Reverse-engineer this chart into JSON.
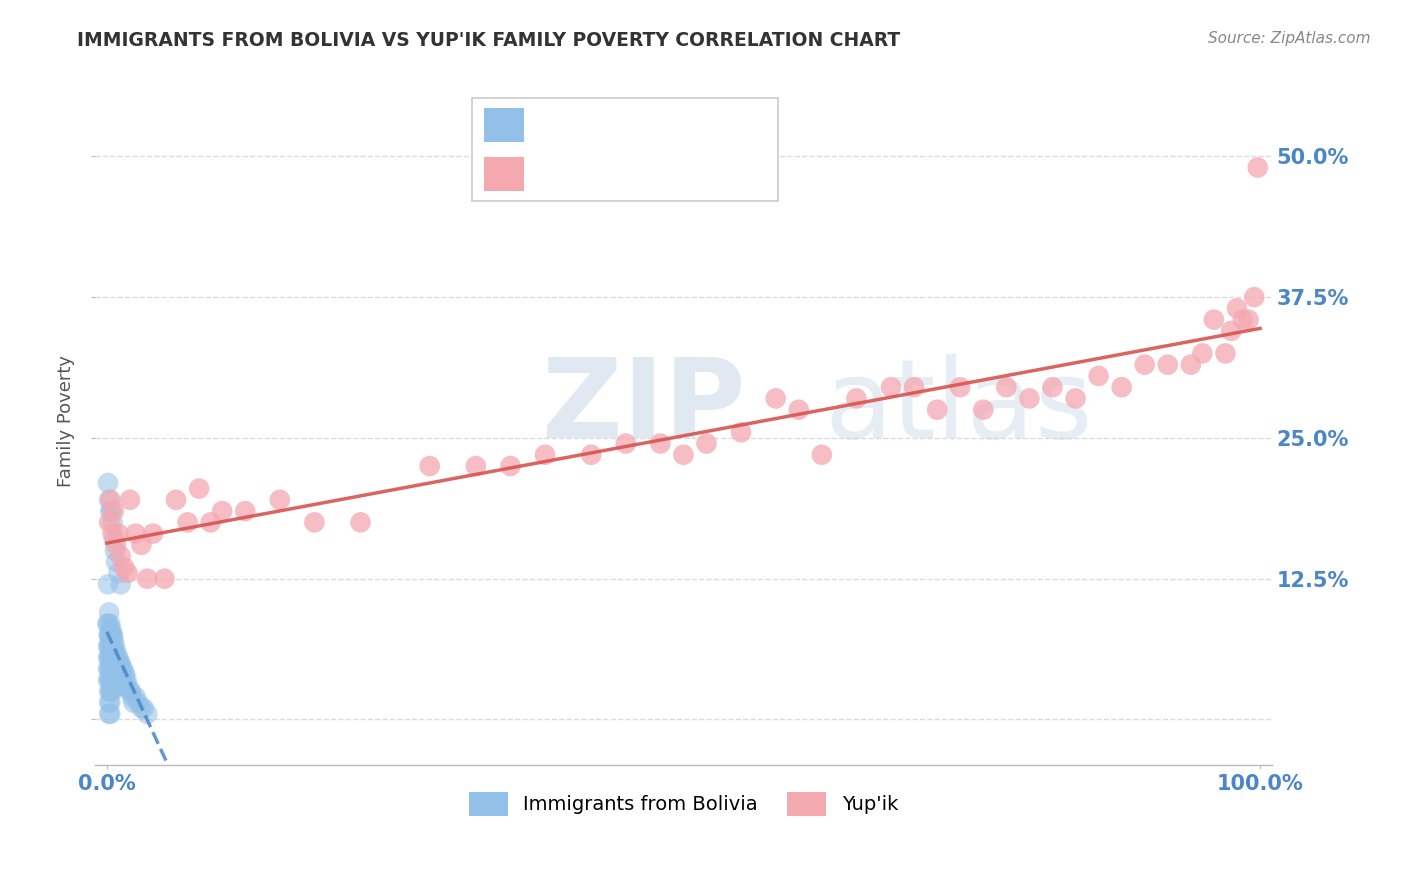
{
  "title": "IMMIGRANTS FROM BOLIVIA VS YUP'IK FAMILY POVERTY CORRELATION CHART",
  "source": "Source: ZipAtlas.com",
  "ylabel": "Family Poverty",
  "yticks": [
    0.0,
    0.125,
    0.25,
    0.375,
    0.5
  ],
  "ytick_labels_right": [
    "",
    "12.5%",
    "25.0%",
    "37.5%",
    "50.0%"
  ],
  "xlim": [
    -0.01,
    1.01
  ],
  "ylim": [
    -0.04,
    0.57
  ],
  "watermark_zip": "ZIP",
  "watermark_atlas": "atlas",
  "legend_label1": "Immigrants from Bolivia",
  "legend_label2": "Yup'ik",
  "blue_color": "#92c0e8",
  "pink_color": "#f4a8b0",
  "blue_line_color": "#4a86c8",
  "pink_line_color": "#d9534f",
  "title_color": "#333333",
  "source_color": "#888888",
  "axis_label_color": "#555555",
  "tick_label_color": "#4a86c8",
  "grid_color": "#cccccc",
  "background_color": "#ffffff",
  "bolivia_x": [
    0.0005,
    0.001,
    0.001,
    0.001,
    0.001,
    0.0015,
    0.002,
    0.002,
    0.002,
    0.002,
    0.002,
    0.002,
    0.002,
    0.003,
    0.003,
    0.003,
    0.003,
    0.003,
    0.003,
    0.003,
    0.003,
    0.004,
    0.004,
    0.004,
    0.004,
    0.004,
    0.004,
    0.005,
    0.005,
    0.005,
    0.005,
    0.005,
    0.005,
    0.006,
    0.006,
    0.006,
    0.006,
    0.007,
    0.007,
    0.007,
    0.007,
    0.008,
    0.008,
    0.008,
    0.009,
    0.009,
    0.01,
    0.01,
    0.01,
    0.011,
    0.011,
    0.012,
    0.012,
    0.013,
    0.013,
    0.014,
    0.015,
    0.015,
    0.016,
    0.017,
    0.018,
    0.02,
    0.021,
    0.022,
    0.023,
    0.025,
    0.027,
    0.03,
    0.032,
    0.035,
    0.001,
    0.001,
    0.002,
    0.002,
    0.003,
    0.003,
    0.004,
    0.004,
    0.005,
    0.005,
    0.001,
    0.002,
    0.003,
    0.004,
    0.005,
    0.006,
    0.007,
    0.008,
    0.01,
    0.012
  ],
  "bolivia_y": [
    0.085,
    0.065,
    0.055,
    0.045,
    0.035,
    0.075,
    0.065,
    0.055,
    0.045,
    0.035,
    0.025,
    0.015,
    0.005,
    0.075,
    0.065,
    0.055,
    0.045,
    0.035,
    0.025,
    0.015,
    0.005,
    0.075,
    0.065,
    0.055,
    0.045,
    0.035,
    0.025,
    0.075,
    0.065,
    0.055,
    0.045,
    0.035,
    0.025,
    0.07,
    0.06,
    0.05,
    0.04,
    0.065,
    0.055,
    0.045,
    0.035,
    0.06,
    0.05,
    0.04,
    0.055,
    0.045,
    0.055,
    0.045,
    0.035,
    0.05,
    0.04,
    0.05,
    0.04,
    0.045,
    0.035,
    0.045,
    0.04,
    0.03,
    0.04,
    0.035,
    0.03,
    0.025,
    0.025,
    0.02,
    0.015,
    0.02,
    0.015,
    0.01,
    0.01,
    0.005,
    0.12,
    0.085,
    0.095,
    0.075,
    0.085,
    0.07,
    0.08,
    0.065,
    0.075,
    0.06,
    0.21,
    0.195,
    0.185,
    0.185,
    0.175,
    0.16,
    0.15,
    0.14,
    0.13,
    0.12
  ],
  "yupik_x": [
    0.002,
    0.003,
    0.005,
    0.006,
    0.008,
    0.01,
    0.012,
    0.015,
    0.018,
    0.02,
    0.025,
    0.03,
    0.035,
    0.04,
    0.05,
    0.06,
    0.07,
    0.08,
    0.09,
    0.1,
    0.12,
    0.15,
    0.18,
    0.22,
    0.28,
    0.32,
    0.35,
    0.38,
    0.42,
    0.45,
    0.48,
    0.5,
    0.52,
    0.55,
    0.58,
    0.6,
    0.62,
    0.65,
    0.68,
    0.7,
    0.72,
    0.74,
    0.76,
    0.78,
    0.8,
    0.82,
    0.84,
    0.86,
    0.88,
    0.9,
    0.92,
    0.94,
    0.95,
    0.96,
    0.97,
    0.975,
    0.98,
    0.985,
    0.99,
    0.995,
    0.998
  ],
  "yupik_y": [
    0.175,
    0.195,
    0.165,
    0.185,
    0.155,
    0.165,
    0.145,
    0.135,
    0.13,
    0.195,
    0.165,
    0.155,
    0.125,
    0.165,
    0.125,
    0.195,
    0.175,
    0.205,
    0.175,
    0.185,
    0.185,
    0.195,
    0.175,
    0.175,
    0.225,
    0.225,
    0.225,
    0.235,
    0.235,
    0.245,
    0.245,
    0.235,
    0.245,
    0.255,
    0.285,
    0.275,
    0.235,
    0.285,
    0.295,
    0.295,
    0.275,
    0.295,
    0.275,
    0.295,
    0.285,
    0.295,
    0.285,
    0.305,
    0.295,
    0.315,
    0.315,
    0.315,
    0.325,
    0.355,
    0.325,
    0.345,
    0.365,
    0.355,
    0.355,
    0.375,
    0.49
  ]
}
